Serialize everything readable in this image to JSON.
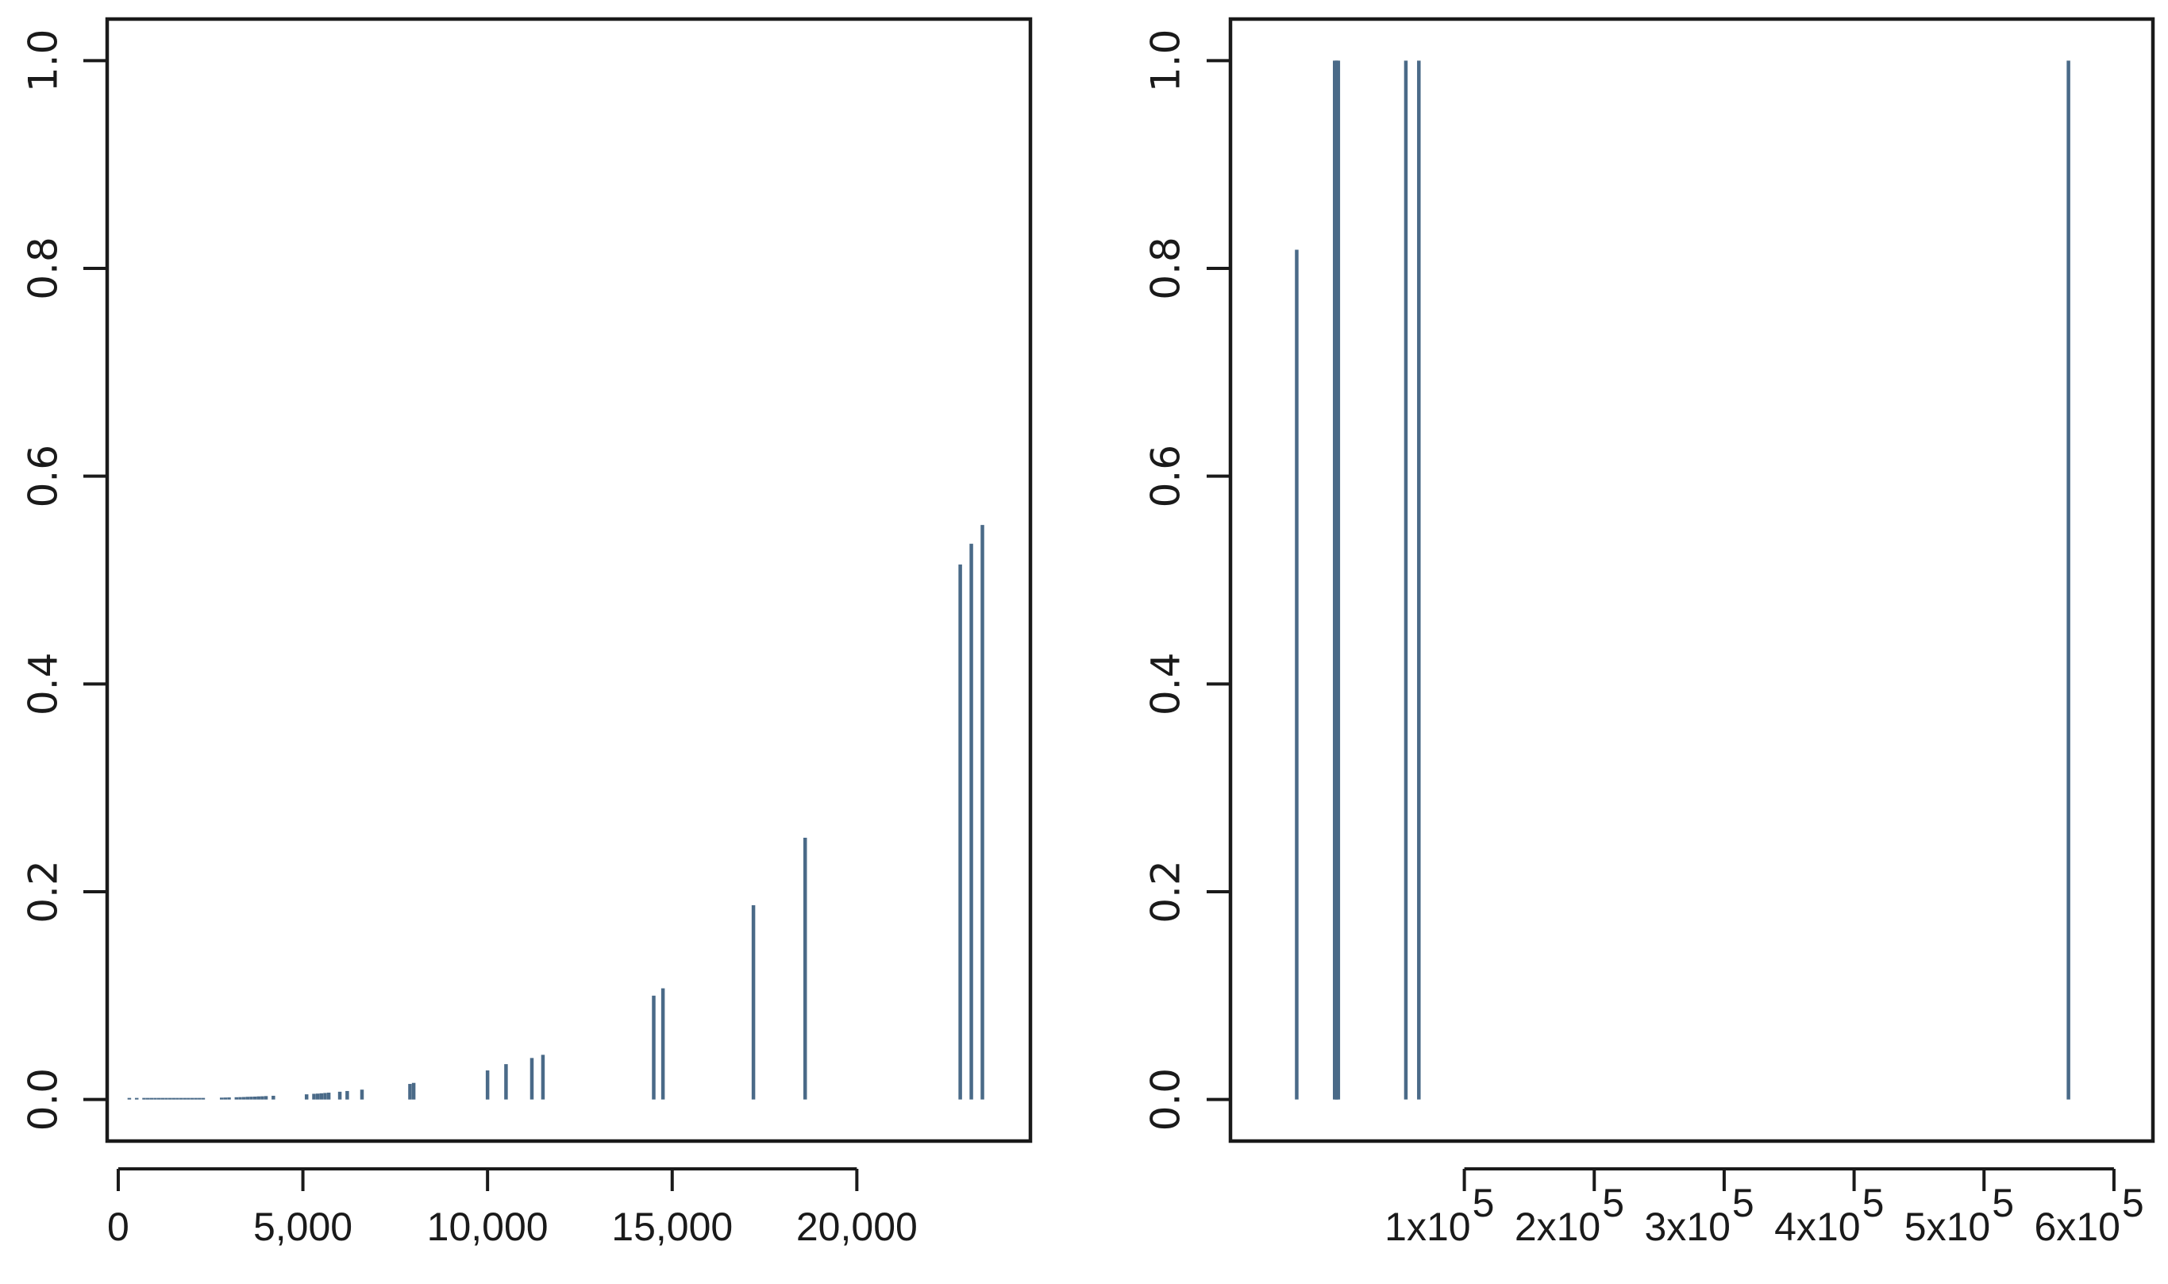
{
  "chart_data": [
    {
      "type": "spike",
      "title": "",
      "xlabel": "",
      "ylabel": "",
      "xlim": [
        -300,
        24700
      ],
      "ylim": [
        -0.04,
        1.04
      ],
      "x_ticks": [
        0,
        5000,
        10000,
        15000,
        20000
      ],
      "x_tick_labels": [
        "0",
        "5,000",
        "10,000",
        "15,000",
        "20,000"
      ],
      "y_ticks": [
        0.0,
        0.2,
        0.4,
        0.6,
        0.8,
        1.0
      ],
      "y_tick_labels": [
        "0.0",
        "0.2",
        "0.4",
        "0.6",
        "0.8",
        "1.0"
      ],
      "series": [
        {
          "color": "#4a6a88",
          "x": [
            300,
            500,
            700,
            800,
            900,
            1000,
            1100,
            1200,
            1300,
            1400,
            1500,
            1600,
            1700,
            1800,
            1900,
            2000,
            2100,
            2200,
            2300,
            2800,
            2900,
            3000,
            3200,
            3300,
            3400,
            3500,
            3600,
            3700,
            3800,
            3900,
            4000,
            4200,
            5100,
            5300,
            5400,
            5500,
            5600,
            5700,
            6000,
            6200,
            6600,
            7900,
            8000,
            10000,
            10500,
            11200,
            11500,
            14500,
            14750,
            17200,
            18600,
            22800,
            23100,
            23400
          ],
          "y": [
            0.0003,
            0.0004,
            0.0005,
            0.0005,
            0.0006,
            0.0006,
            0.0007,
            0.0007,
            0.0008,
            0.0008,
            0.0009,
            0.0009,
            0.001,
            0.001,
            0.0011,
            0.0012,
            0.0012,
            0.0013,
            0.0014,
            0.0018,
            0.0019,
            0.002,
            0.0022,
            0.0023,
            0.0024,
            0.0026,
            0.0027,
            0.0028,
            0.003,
            0.0031,
            0.0033,
            0.0036,
            0.005,
            0.0055,
            0.0057,
            0.006,
            0.0063,
            0.0066,
            0.0075,
            0.0082,
            0.0095,
            0.015,
            0.016,
            0.028,
            0.034,
            0.04,
            0.043,
            0.1,
            0.107,
            0.187,
            0.252,
            0.515,
            0.535,
            0.553
          ]
        }
      ]
    },
    {
      "type": "spike",
      "title": "",
      "xlabel": "",
      "ylabel": "",
      "xlim": [
        -80000,
        630000
      ],
      "ylim": [
        -0.04,
        1.04
      ],
      "x_ticks": [
        100000,
        200000,
        300000,
        400000,
        500000,
        600000
      ],
      "x_tick_labels": [
        {
          "base": "1x10",
          "exp": "5"
        },
        {
          "base": "2x10",
          "exp": "5"
        },
        {
          "base": "3x10",
          "exp": "5"
        },
        {
          "base": "4x10",
          "exp": "5"
        },
        {
          "base": "5x10",
          "exp": "5"
        },
        {
          "base": "6x10",
          "exp": "5"
        }
      ],
      "y_ticks": [
        0.0,
        0.2,
        0.4,
        0.6,
        0.8,
        1.0
      ],
      "y_tick_labels": [
        "0.0",
        "0.2",
        "0.4",
        "0.6",
        "0.8",
        "1.0"
      ],
      "series": [
        {
          "color": "#4a6a88",
          "x": [
            -29000,
            200,
            1200,
            2000,
            3000,
            55000,
            65000,
            565000
          ],
          "y": [
            0.818,
            1.0,
            1.0,
            1.0,
            1.0,
            1.0,
            1.0,
            1.0
          ]
        }
      ]
    }
  ]
}
